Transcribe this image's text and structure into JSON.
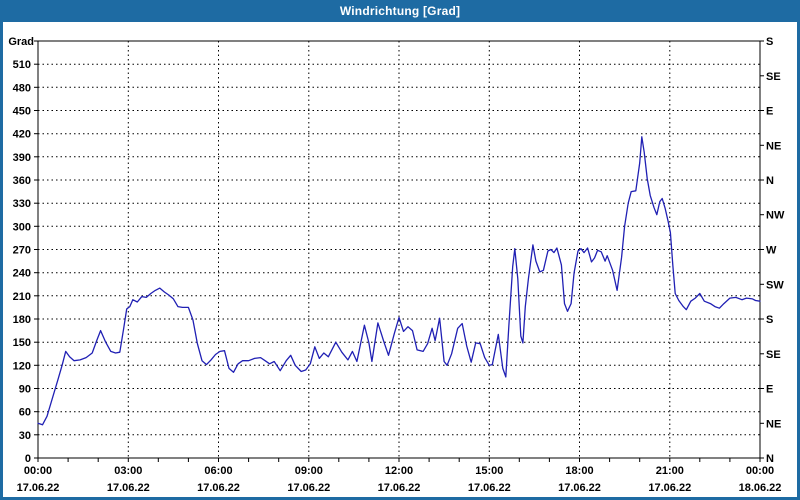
{
  "window": {
    "title": "Windrichtung [Grad]"
  },
  "colors": {
    "titlebar": "#1e6ba3",
    "window_border": "#1e6ba3",
    "series_line": "#2020b4",
    "axis": "#000000",
    "label_text": "#000000",
    "plot_background": "#ffffff"
  },
  "chart_data": {
    "type": "line",
    "title": "Windrichtung [Grad]",
    "grid": {
      "style": "dotted",
      "horizontal_step_deg": 30,
      "vertical_step_hours": 3
    },
    "y_left": {
      "axis_label": "Grad",
      "min": 0,
      "max": 540,
      "tick_step": 30
    },
    "y_right": {
      "tick_step_deg": 45,
      "labels_top_to_bottom": [
        "S",
        "SE",
        "E",
        "NE",
        "N",
        "NW",
        "W",
        "SW",
        "S",
        "SE",
        "E",
        "NE",
        "N"
      ]
    },
    "x_axis": {
      "min_hours": 0,
      "max_hours": 24,
      "minor_tick_hours": 1,
      "major_ticks": [
        {
          "hours": 0,
          "time": "00:00",
          "date": "17.06.22"
        },
        {
          "hours": 3,
          "time": "03:00",
          "date": "17.06.22"
        },
        {
          "hours": 6,
          "time": "06:00",
          "date": "17.06.22"
        },
        {
          "hours": 9,
          "time": "09:00",
          "date": "17.06.22"
        },
        {
          "hours": 12,
          "time": "12:00",
          "date": "17.06.22"
        },
        {
          "hours": 15,
          "time": "15:00",
          "date": "17.06.22"
        },
        {
          "hours": 18,
          "time": "18:00",
          "date": "17.06.22"
        },
        {
          "hours": 21,
          "time": "21:00",
          "date": "17.06.22"
        },
        {
          "hours": 24,
          "time": "00:00",
          "date": "18.06.22"
        }
      ]
    },
    "series": [
      {
        "name": "Windrichtung",
        "color": "#2020b4",
        "points": [
          [
            0,
            45
          ],
          [
            0.15,
            43
          ],
          [
            0.3,
            54
          ],
          [
            0.5,
            80
          ],
          [
            0.65,
            100
          ],
          [
            0.8,
            120
          ],
          [
            0.92,
            138
          ],
          [
            1.05,
            131
          ],
          [
            1.2,
            126
          ],
          [
            1.4,
            127
          ],
          [
            1.6,
            130
          ],
          [
            1.8,
            136
          ],
          [
            1.95,
            152
          ],
          [
            2.08,
            165
          ],
          [
            2.25,
            150
          ],
          [
            2.42,
            138
          ],
          [
            2.58,
            136
          ],
          [
            2.72,
            137
          ],
          [
            2.85,
            168
          ],
          [
            2.95,
            193
          ],
          [
            3.05,
            196
          ],
          [
            3.15,
            205
          ],
          [
            3.3,
            202
          ],
          [
            3.45,
            209
          ],
          [
            3.6,
            208
          ],
          [
            3.75,
            213
          ],
          [
            3.9,
            217
          ],
          [
            4.05,
            220
          ],
          [
            4.2,
            215
          ],
          [
            4.35,
            211
          ],
          [
            4.5,
            206
          ],
          [
            4.65,
            196
          ],
          [
            4.8,
            195
          ],
          [
            5.0,
            195
          ],
          [
            5.15,
            179
          ],
          [
            5.3,
            148
          ],
          [
            5.45,
            126
          ],
          [
            5.6,
            121
          ],
          [
            5.75,
            127
          ],
          [
            5.9,
            134
          ],
          [
            6.05,
            138
          ],
          [
            6.2,
            139
          ],
          [
            6.35,
            116
          ],
          [
            6.5,
            111
          ],
          [
            6.65,
            122
          ],
          [
            6.8,
            126
          ],
          [
            7.0,
            126
          ],
          [
            7.2,
            129
          ],
          [
            7.4,
            130
          ],
          [
            7.55,
            126
          ],
          [
            7.7,
            122
          ],
          [
            7.85,
            125
          ],
          [
            8.05,
            113
          ],
          [
            8.25,
            126
          ],
          [
            8.4,
            133
          ],
          [
            8.55,
            120
          ],
          [
            8.75,
            112
          ],
          [
            8.9,
            114
          ],
          [
            9.05,
            122
          ],
          [
            9.2,
            144
          ],
          [
            9.35,
            129
          ],
          [
            9.5,
            136
          ],
          [
            9.65,
            131
          ],
          [
            9.9,
            150
          ],
          [
            10.1,
            137
          ],
          [
            10.3,
            127
          ],
          [
            10.45,
            138
          ],
          [
            10.6,
            125
          ],
          [
            10.85,
            172
          ],
          [
            11.0,
            149
          ],
          [
            11.1,
            125
          ],
          [
            11.3,
            175
          ],
          [
            11.5,
            150
          ],
          [
            11.65,
            133
          ],
          [
            11.85,
            162
          ],
          [
            12.0,
            182
          ],
          [
            12.15,
            164
          ],
          [
            12.3,
            170
          ],
          [
            12.45,
            165
          ],
          [
            12.6,
            140
          ],
          [
            12.8,
            138
          ],
          [
            12.95,
            148
          ],
          [
            13.1,
            168
          ],
          [
            13.2,
            152
          ],
          [
            13.35,
            181
          ],
          [
            13.5,
            125
          ],
          [
            13.6,
            120
          ],
          [
            13.75,
            135
          ],
          [
            13.95,
            168
          ],
          [
            14.1,
            174
          ],
          [
            14.25,
            145
          ],
          [
            14.4,
            124
          ],
          [
            14.55,
            149
          ],
          [
            14.7,
            148
          ],
          [
            14.85,
            130
          ],
          [
            15.0,
            120
          ],
          [
            15.1,
            121
          ],
          [
            15.3,
            160
          ],
          [
            15.45,
            116
          ],
          [
            15.55,
            105
          ],
          [
            15.65,
            170
          ],
          [
            15.78,
            248
          ],
          [
            15.85,
            271
          ],
          [
            15.95,
            232
          ],
          [
            16.05,
            158
          ],
          [
            16.12,
            149
          ],
          [
            16.2,
            196
          ],
          [
            16.3,
            232
          ],
          [
            16.45,
            276
          ],
          [
            16.55,
            255
          ],
          [
            16.68,
            241
          ],
          [
            16.8,
            243
          ],
          [
            16.95,
            268
          ],
          [
            17.05,
            270
          ],
          [
            17.15,
            266
          ],
          [
            17.25,
            272
          ],
          [
            17.4,
            250
          ],
          [
            17.5,
            200
          ],
          [
            17.6,
            190
          ],
          [
            17.72,
            200
          ],
          [
            17.82,
            240
          ],
          [
            17.95,
            268
          ],
          [
            18.05,
            271
          ],
          [
            18.15,
            266
          ],
          [
            18.27,
            272
          ],
          [
            18.4,
            254
          ],
          [
            18.5,
            259
          ],
          [
            18.6,
            269
          ],
          [
            18.72,
            267
          ],
          [
            18.85,
            255
          ],
          [
            18.92,
            262
          ],
          [
            19.1,
            243
          ],
          [
            19.25,
            217
          ],
          [
            19.4,
            260
          ],
          [
            19.5,
            300
          ],
          [
            19.62,
            330
          ],
          [
            19.72,
            345
          ],
          [
            19.87,
            346
          ],
          [
            20.0,
            382
          ],
          [
            20.07,
            416
          ],
          [
            20.15,
            396
          ],
          [
            20.25,
            362
          ],
          [
            20.35,
            340
          ],
          [
            20.48,
            324
          ],
          [
            20.57,
            315
          ],
          [
            20.67,
            332
          ],
          [
            20.75,
            336
          ],
          [
            20.85,
            323
          ],
          [
            20.95,
            306
          ],
          [
            21.02,
            292
          ],
          [
            21.1,
            250
          ],
          [
            21.18,
            213
          ],
          [
            21.3,
            204
          ],
          [
            21.45,
            196
          ],
          [
            21.55,
            192
          ],
          [
            21.7,
            203
          ],
          [
            21.85,
            207
          ],
          [
            22.0,
            213
          ],
          [
            22.15,
            203
          ],
          [
            22.35,
            200
          ],
          [
            22.5,
            196
          ],
          [
            22.65,
            194
          ],
          [
            22.8,
            200
          ],
          [
            23.0,
            207
          ],
          [
            23.2,
            208
          ],
          [
            23.4,
            205
          ],
          [
            23.55,
            207
          ],
          [
            23.75,
            206
          ],
          [
            23.85,
            204
          ],
          [
            24.0,
            203
          ]
        ]
      }
    ]
  }
}
